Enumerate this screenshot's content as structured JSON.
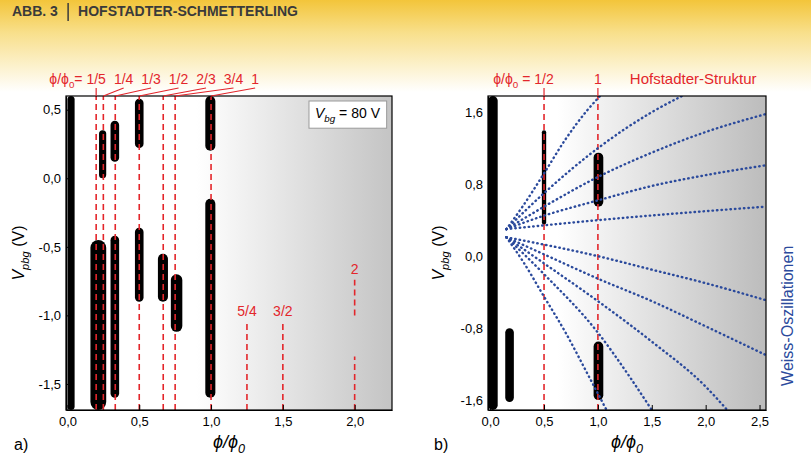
{
  "header": {
    "label": "ABB. 3",
    "title": "HOFSTADTER-SCHMETTERLING"
  },
  "chart_data": [
    {
      "type": "map",
      "panel": "a)",
      "xlabel": {
        "text": "ϕ/ϕ",
        "sub": "0"
      },
      "ylabel": {
        "text": "V",
        "sub": "pbg",
        "suffix": " (V)"
      },
      "xlim": [
        -0.01,
        2.26
      ],
      "xticks": [
        {
          "value": 0,
          "label": "0,0"
        },
        {
          "value": 0.5,
          "label": "0,5"
        },
        {
          "value": 1,
          "label": "1,0"
        },
        {
          "value": 1.5,
          "label": "1,5"
        },
        {
          "value": 2,
          "label": "2,0"
        }
      ],
      "ylim": [
        -1.69,
        0.6
      ],
      "yticks": [
        {
          "value": 0.5,
          "label": "0,5"
        },
        {
          "value": 0,
          "label": "0,0"
        },
        {
          "value": -0.5,
          "label": "-0,5"
        },
        {
          "value": -1,
          "label": "-1,0"
        },
        {
          "value": -1.5,
          "label": "-1,5"
        }
      ],
      "box": {
        "text": "V",
        "sub": "bg",
        "suffix": " = 80 V"
      },
      "fraction_prefix": {
        "text": "ϕ/ϕ",
        "sub": "0",
        "suffix": "= "
      },
      "fraction_lines": {
        "color": "#e3262b",
        "line_style": "dashed",
        "items": [
          {
            "label": "1/5",
            "x": 0.2
          },
          {
            "label": "1/4",
            "x": 0.25
          },
          {
            "label": "1/3",
            "x": 0.333
          },
          {
            "label": "1/2",
            "x": 0.5
          },
          {
            "label": "2/3",
            "x": 0.667
          },
          {
            "label": "3/4",
            "x": 0.75
          },
          {
            "label": "1",
            "x": 1.0
          }
        ]
      },
      "inner_lines": {
        "color": "#e3262b",
        "line_style": "dashed",
        "items": [
          {
            "label": "5/4",
            "x": 1.25,
            "segments": [
              [
                -1.69,
                -1.05
              ]
            ]
          },
          {
            "label": "3/2",
            "x": 1.5,
            "segments": [
              [
                -1.69,
                -1.05
              ]
            ]
          },
          {
            "label": "2",
            "x": 2.0,
            "segments": [
              [
                -1.0,
                -0.74
              ],
              [
                -1.69,
                -1.3
              ]
            ]
          }
        ]
      },
      "regions": {
        "color": "#000000",
        "items": [
          {
            "x": [
              0.0,
              0.05
            ],
            "y": [
              -1.69,
              0.6
            ]
          },
          {
            "x": [
              0.16,
              0.27
            ],
            "y": [
              -1.69,
              -0.45
            ]
          },
          {
            "x": [
              0.22,
              0.27
            ],
            "y": [
              0.0,
              0.35
            ]
          },
          {
            "x": [
              0.3,
              0.36
            ],
            "y": [
              0.12,
              0.42
            ]
          },
          {
            "x": [
              0.3,
              0.36
            ],
            "y": [
              -1.6,
              -0.42
            ]
          },
          {
            "x": [
              0.47,
              0.53
            ],
            "y": [
              0.22,
              0.58
            ]
          },
          {
            "x": [
              0.47,
              0.53
            ],
            "y": [
              -0.9,
              -0.36
            ]
          },
          {
            "x": [
              0.63,
              0.7
            ],
            "y": [
              -0.9,
              -0.55
            ]
          },
          {
            "x": [
              0.72,
              0.8
            ],
            "y": [
              -1.12,
              -0.7
            ]
          },
          {
            "x": [
              0.96,
              1.03
            ],
            "y": [
              0.2,
              0.6
            ]
          },
          {
            "x": [
              0.96,
              1.03
            ],
            "y": [
              -1.6,
              -0.15
            ]
          }
        ]
      }
    },
    {
      "type": "map",
      "panel": "b)",
      "xlabel": {
        "text": "ϕ/ϕ",
        "sub": "0"
      },
      "ylabel": {
        "text": "V",
        "sub": "pbg",
        "suffix": " (V)"
      },
      "xlim": [
        -0.02,
        2.56
      ],
      "xticks": [
        {
          "value": 0,
          "label": "0,0"
        },
        {
          "value": 0.5,
          "label": "0,5"
        },
        {
          "value": 1,
          "label": "1,0"
        },
        {
          "value": 1.5,
          "label": "1,5"
        },
        {
          "value": 2,
          "label": "2,0"
        },
        {
          "value": 2.5,
          "label": "2,5"
        }
      ],
      "ylim": [
        -1.71,
        1.78
      ],
      "yticks": [
        {
          "value": 1.6,
          "label": "1,6"
        },
        {
          "value": 0.8,
          "label": "0,8"
        },
        {
          "value": 0,
          "label": "0,0"
        },
        {
          "value": -0.8,
          "label": "-0,8"
        },
        {
          "value": -1.6,
          "label": "-1,6"
        }
      ],
      "fraction_prefix": {
        "text": "ϕ/ϕ",
        "sub": "0",
        "suffix": " = "
      },
      "fraction_lines": {
        "color": "#e3262b",
        "line_style": "dashed",
        "items": [
          {
            "label": "1/2",
            "x": 0.5
          },
          {
            "label": "1",
            "x": 1.0
          }
        ]
      },
      "line_label": {
        "text": "Hofstadter-Struktur",
        "color": "#e3262b"
      },
      "series_label": {
        "text": "Weiss-Oszillationen",
        "color": "#2b4a9c"
      },
      "regions": {
        "color": "#000000",
        "items": [
          {
            "x": [
              -0.02,
              0.07
            ],
            "y": [
              -1.71,
              1.78
            ]
          },
          {
            "x": [
              0.14,
              0.22
            ],
            "y": [
              -1.62,
              -0.8
            ]
          },
          {
            "x": [
              0.48,
              0.52
            ],
            "y": [
              0.35,
              1.4
            ]
          },
          {
            "x": [
              0.96,
              1.05
            ],
            "y": [
              0.55,
              1.15
            ]
          },
          {
            "x": [
              0.96,
              1.05
            ],
            "y": [
              -1.6,
              -0.95
            ]
          }
        ]
      },
      "series": [
        {
          "color": "#2b4a9c",
          "line_style": "dotted",
          "x": [
            0.15,
            0.3,
            0.5,
            0.7,
            0.9,
            1.02
          ],
          "values": [
            0.3,
            0.55,
            0.92,
            1.3,
            1.62,
            1.78
          ]
        },
        {
          "color": "#2b4a9c",
          "line_style": "dotted",
          "x": [
            0.15,
            0.5,
            1.0,
            1.5,
            1.78
          ],
          "values": [
            0.3,
            0.7,
            1.2,
            1.6,
            1.78
          ]
        },
        {
          "color": "#2b4a9c",
          "line_style": "dotted",
          "x": [
            0.15,
            0.5,
            1.0,
            1.5,
            2.0,
            2.56
          ],
          "values": [
            0.3,
            0.55,
            0.88,
            1.15,
            1.38,
            1.58
          ]
        },
        {
          "color": "#2b4a9c",
          "line_style": "dotted",
          "x": [
            0.15,
            0.5,
            1.0,
            1.5,
            2.0,
            2.56
          ],
          "values": [
            0.3,
            0.45,
            0.62,
            0.78,
            0.9,
            1.01
          ]
        },
        {
          "color": "#2b4a9c",
          "line_style": "dotted",
          "x": [
            0.15,
            1.0,
            2.0,
            2.56
          ],
          "values": [
            0.3,
            0.4,
            0.5,
            0.55
          ]
        },
        {
          "color": "#2b4a9c",
          "line_style": "dotted",
          "x": [
            0.15,
            0.3,
            0.5,
            0.7,
            0.9,
            1.08
          ],
          "values": [
            0.21,
            -0.05,
            -0.45,
            -0.85,
            -1.3,
            -1.71
          ]
        },
        {
          "color": "#2b4a9c",
          "line_style": "dotted",
          "x": [
            0.15,
            0.5,
            1.0,
            1.3,
            1.5
          ],
          "values": [
            0.21,
            -0.2,
            -0.85,
            -1.35,
            -1.71
          ]
        },
        {
          "color": "#2b4a9c",
          "line_style": "dotted",
          "x": [
            0.15,
            0.5,
            1.0,
            1.5,
            2.0,
            2.2
          ],
          "values": [
            0.21,
            -0.08,
            -0.5,
            -0.95,
            -1.45,
            -1.71
          ]
        },
        {
          "color": "#2b4a9c",
          "line_style": "dotted",
          "x": [
            0.15,
            0.5,
            1.0,
            1.5,
            2.0,
            2.56
          ],
          "values": [
            0.21,
            0.02,
            -0.25,
            -0.5,
            -0.78,
            -1.1
          ]
        },
        {
          "color": "#2b4a9c",
          "line_style": "dotted",
          "x": [
            0.15,
            1.0,
            1.5,
            2.0,
            2.56
          ],
          "values": [
            0.21,
            0.0,
            -0.15,
            -0.3,
            -0.49
          ]
        }
      ]
    }
  ]
}
